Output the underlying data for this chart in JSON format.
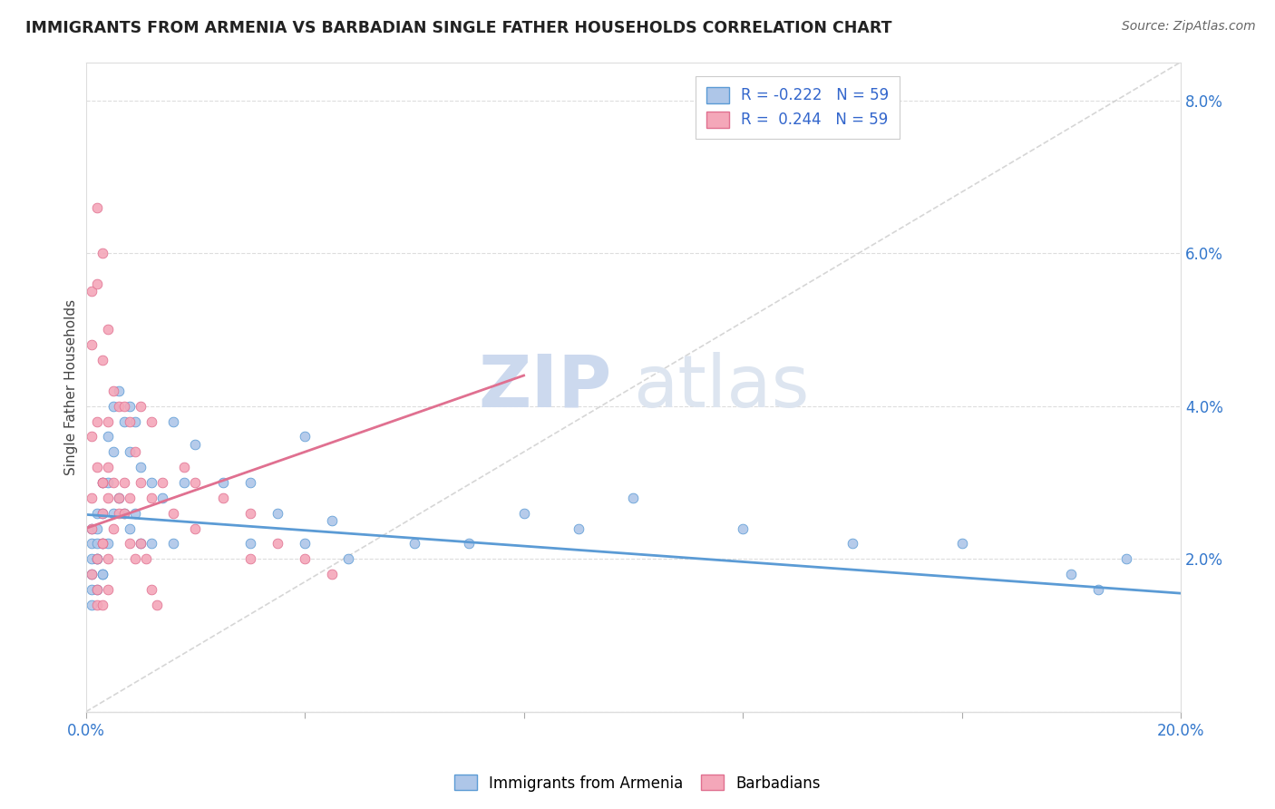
{
  "title": "IMMIGRANTS FROM ARMENIA VS BARBADIAN SINGLE FATHER HOUSEHOLDS CORRELATION CHART",
  "source": "Source: ZipAtlas.com",
  "ylabel": "Single Father Households",
  "xlim": [
    0.0,
    0.2
  ],
  "ylim": [
    0.0,
    0.085
  ],
  "color_blue": "#aec6e8",
  "color_pink": "#f4a7b9",
  "line_blue": "#5b9bd5",
  "line_pink": "#e07090",
  "line_diag": "#cccccc",
  "watermark_zip": "ZIP",
  "watermark_atlas": "atlas",
  "legend_label1": "Immigrants from Armenia",
  "legend_label2": "Barbadians",
  "blue_trend_x": [
    0.0,
    0.2
  ],
  "blue_trend_y": [
    0.0258,
    0.0155
  ],
  "pink_trend_x": [
    0.0,
    0.08
  ],
  "pink_trend_y": [
    0.024,
    0.044
  ],
  "blue_scatter_x": [
    0.001,
    0.001,
    0.001,
    0.001,
    0.001,
    0.001,
    0.002,
    0.002,
    0.002,
    0.002,
    0.002,
    0.003,
    0.003,
    0.003,
    0.003,
    0.004,
    0.004,
    0.004,
    0.005,
    0.005,
    0.005,
    0.006,
    0.006,
    0.007,
    0.007,
    0.008,
    0.008,
    0.008,
    0.009,
    0.009,
    0.01,
    0.01,
    0.012,
    0.012,
    0.014,
    0.016,
    0.016,
    0.018,
    0.02,
    0.025,
    0.03,
    0.03,
    0.035,
    0.04,
    0.04,
    0.045,
    0.048,
    0.06,
    0.07,
    0.08,
    0.09,
    0.1,
    0.12,
    0.14,
    0.16,
    0.18,
    0.185,
    0.19,
    0.002,
    0.003
  ],
  "blue_scatter_y": [
    0.024,
    0.022,
    0.02,
    0.018,
    0.016,
    0.014,
    0.026,
    0.024,
    0.022,
    0.02,
    0.016,
    0.03,
    0.026,
    0.022,
    0.018,
    0.036,
    0.03,
    0.022,
    0.04,
    0.034,
    0.026,
    0.042,
    0.028,
    0.038,
    0.026,
    0.04,
    0.034,
    0.024,
    0.038,
    0.026,
    0.032,
    0.022,
    0.03,
    0.022,
    0.028,
    0.038,
    0.022,
    0.03,
    0.035,
    0.03,
    0.03,
    0.022,
    0.026,
    0.036,
    0.022,
    0.025,
    0.02,
    0.022,
    0.022,
    0.026,
    0.024,
    0.028,
    0.024,
    0.022,
    0.022,
    0.018,
    0.016,
    0.02,
    0.02,
    0.018
  ],
  "pink_scatter_x": [
    0.001,
    0.001,
    0.001,
    0.002,
    0.002,
    0.002,
    0.003,
    0.003,
    0.003,
    0.004,
    0.004,
    0.004,
    0.005,
    0.005,
    0.006,
    0.006,
    0.007,
    0.007,
    0.008,
    0.008,
    0.009,
    0.01,
    0.01,
    0.012,
    0.012,
    0.014,
    0.016,
    0.018,
    0.02,
    0.02,
    0.025,
    0.03,
    0.03,
    0.035,
    0.04,
    0.045,
    0.001,
    0.001,
    0.001,
    0.002,
    0.002,
    0.003,
    0.003,
    0.004,
    0.005,
    0.006,
    0.007,
    0.008,
    0.009,
    0.01,
    0.011,
    0.012,
    0.013,
    0.002,
    0.002,
    0.003,
    0.003,
    0.003,
    0.004,
    0.004
  ],
  "pink_scatter_y": [
    0.055,
    0.048,
    0.036,
    0.066,
    0.056,
    0.038,
    0.06,
    0.046,
    0.03,
    0.05,
    0.038,
    0.028,
    0.042,
    0.03,
    0.04,
    0.028,
    0.04,
    0.03,
    0.038,
    0.028,
    0.034,
    0.04,
    0.03,
    0.038,
    0.028,
    0.03,
    0.026,
    0.032,
    0.03,
    0.024,
    0.028,
    0.026,
    0.02,
    0.022,
    0.02,
    0.018,
    0.028,
    0.024,
    0.018,
    0.032,
    0.02,
    0.03,
    0.022,
    0.032,
    0.024,
    0.026,
    0.026,
    0.022,
    0.02,
    0.022,
    0.02,
    0.016,
    0.014,
    0.016,
    0.014,
    0.026,
    0.022,
    0.014,
    0.02,
    0.016
  ]
}
